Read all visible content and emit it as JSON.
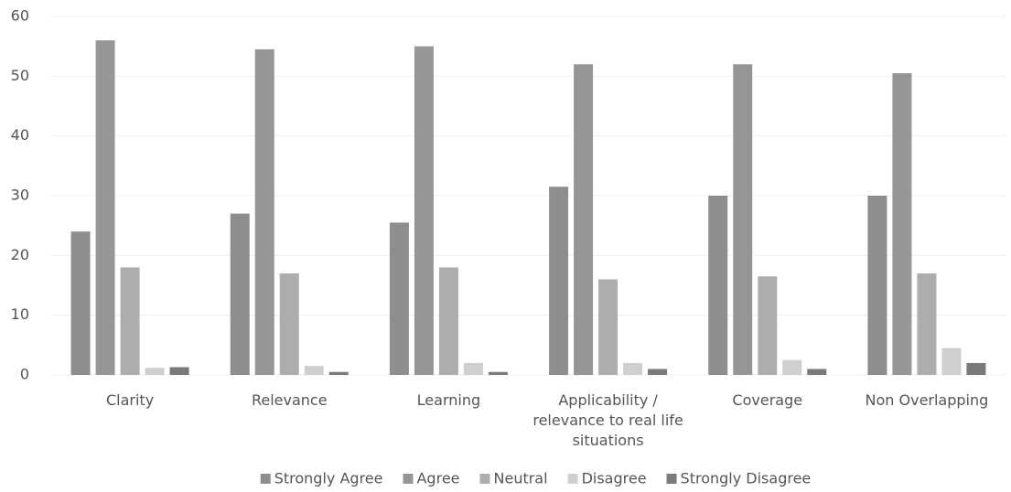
{
  "chart_data": {
    "type": "bar",
    "categories": [
      "Clarity",
      "Relevance",
      "Learning",
      "Applicability / relevance to real life situations",
      "Coverage",
      "Non Overlapping"
    ],
    "series": [
      {
        "name": "Strongly Agree",
        "color": "#8e8e8e",
        "values": [
          24,
          27,
          25.5,
          31.5,
          30,
          30
        ]
      },
      {
        "name": "Agree",
        "color": "#969696",
        "values": [
          56,
          54.5,
          55,
          52,
          52,
          50.5
        ]
      },
      {
        "name": "Neutral",
        "color": "#adadad",
        "values": [
          18,
          17,
          18,
          16,
          16.5,
          17
        ]
      },
      {
        "name": "Disagree",
        "color": "#cfcfcf",
        "values": [
          1.2,
          1.5,
          2,
          2,
          2.5,
          4.5
        ]
      },
      {
        "name": "Strongly Disagree",
        "color": "#7a7a7a",
        "values": [
          1.3,
          0.5,
          0.5,
          1,
          1,
          2
        ]
      }
    ],
    "ylim": [
      0,
      60
    ],
    "yticks": [
      0,
      10,
      20,
      30,
      40,
      50,
      60
    ],
    "grid": true,
    "legend": "bottom"
  }
}
